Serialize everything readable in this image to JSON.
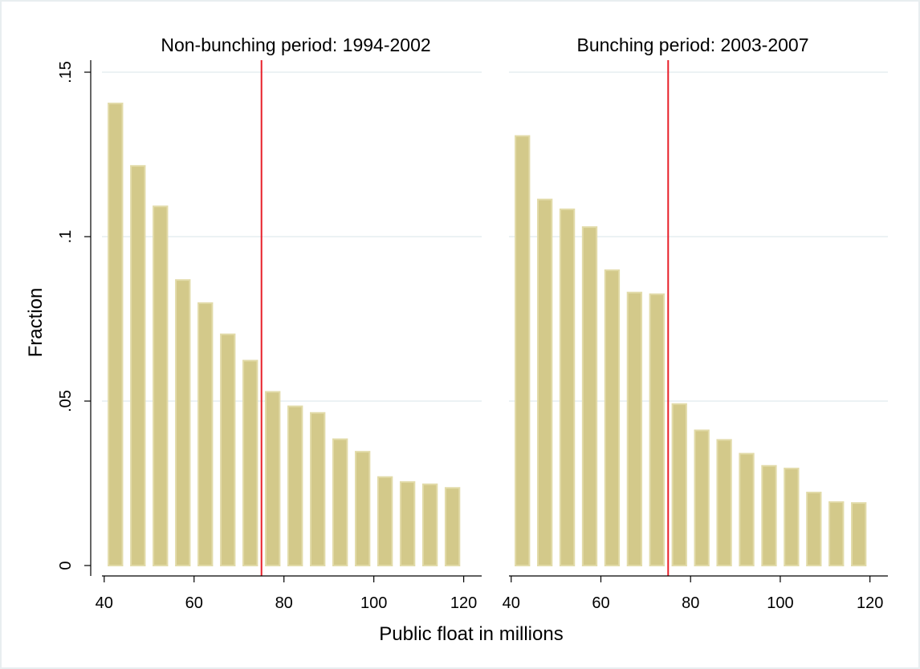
{
  "figure": {
    "xlabel": "Public float in millions",
    "ylabel": "Fraction"
  },
  "colors": {
    "bar_fill": "#d3c98a",
    "bar_edge": "#e2dba9",
    "reference_line": "#e8202a",
    "grid": "#e6edf0"
  },
  "chart_data": [
    {
      "type": "bar",
      "title": "Non-bunching period: 1994-2002",
      "xlabel": "Public float in millions",
      "ylabel": "Fraction",
      "xlim": [
        37,
        124
      ],
      "ylim": [
        0,
        0.15
      ],
      "xticks": [
        40,
        60,
        80,
        100,
        120
      ],
      "yticks": [
        0,
        0.05,
        0.1,
        0.15
      ],
      "ytick_labels": [
        "0",
        ".05",
        ".1",
        ".15"
      ],
      "grid": true,
      "bin_width": 5,
      "bin_centers": [
        42.5,
        47.5,
        52.5,
        57.5,
        62.5,
        67.5,
        72.5,
        77.5,
        82.5,
        87.5,
        92.5,
        97.5,
        102.5,
        107.5,
        112.5,
        117.5
      ],
      "values": [
        0.1405,
        0.1215,
        0.1092,
        0.0868,
        0.0798,
        0.0703,
        0.0623,
        0.0528,
        0.0484,
        0.0464,
        0.0384,
        0.0346,
        0.0269,
        0.0254,
        0.0247,
        0.0236
      ],
      "reference_line_x": 75
    },
    {
      "type": "bar",
      "title": "Bunching period: 2003-2007",
      "xlabel": "Public float in millions",
      "ylabel": "Fraction",
      "xlim": [
        37,
        124
      ],
      "ylim": [
        0,
        0.15
      ],
      "xticks": [
        40,
        60,
        80,
        100,
        120
      ],
      "yticks": [
        0,
        0.05,
        0.1,
        0.15
      ],
      "grid": true,
      "bin_width": 5,
      "bin_centers": [
        42.5,
        47.5,
        52.5,
        57.5,
        62.5,
        67.5,
        72.5,
        77.5,
        82.5,
        87.5,
        92.5,
        97.5,
        102.5,
        107.5,
        112.5,
        117.5
      ],
      "values": [
        0.1306,
        0.1113,
        0.1083,
        0.1029,
        0.0898,
        0.083,
        0.0825,
        0.0491,
        0.0411,
        0.0382,
        0.034,
        0.0303,
        0.0295,
        0.0222,
        0.0193,
        0.019
      ],
      "reference_line_x": 75
    }
  ]
}
